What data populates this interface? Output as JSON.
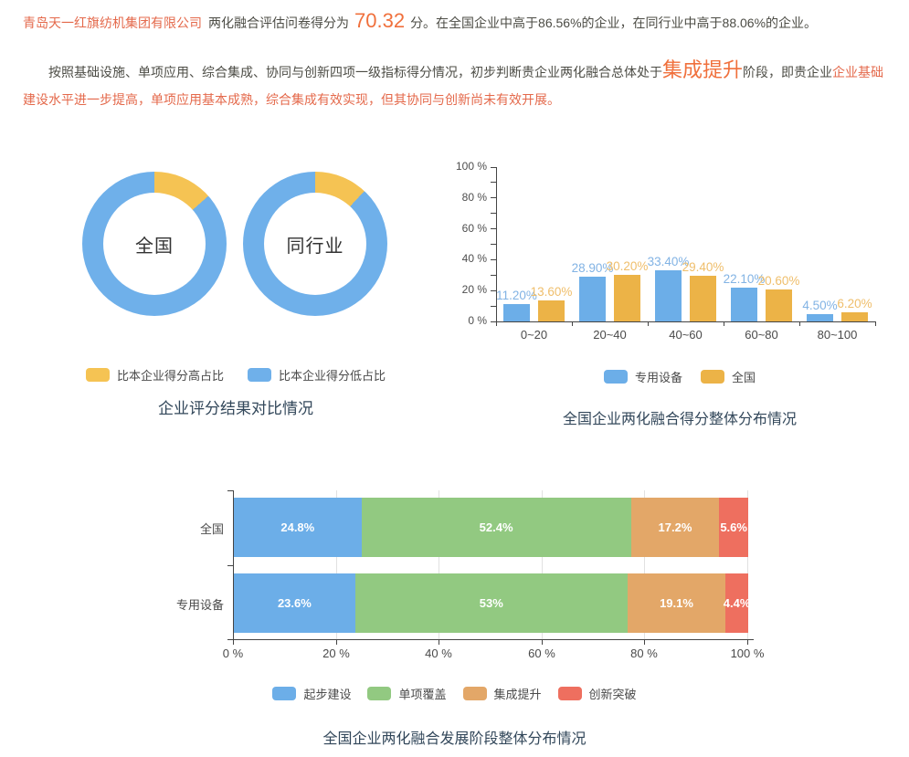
{
  "colors": {
    "blue": "#6CAEE8",
    "donut_blue": "#6FB0EA",
    "donut_yellow": "#F5C353",
    "bar_orange": "#ECB347",
    "stage_green": "#92C981",
    "stage_orange": "#E3A768",
    "stage_red": "#EE6F5F",
    "title_text": "#32475A",
    "body_text": "#4C4C45",
    "highlight_red": "#E4694B",
    "highlight_orange": "#F0703C"
  },
  "summary": {
    "company": "青岛天一红旗纺机集团有限公司",
    "score_prefix": "两化融合评估问卷得分为",
    "score": "70.32",
    "score_suffix": "分。在全国企业中高于86.56%的企业，在同行业中高于88.06%的企业。",
    "stage_prefix": "按照基础设施、单项应用、综合集成、协同与创新四项一级指标得分情况，初步判断贵企业两化融合总体处于",
    "stage": "集成提升",
    "stage_mid": "阶段，即贵企业",
    "stage_desc": "企业基础建设水平进一步提高，单项应用基本成熟，综合集成有效实现，但其协同与创新尚未有效开展。"
  },
  "chart_data": [
    {
      "id": "score-compare-donuts",
      "type": "pie",
      "title": "企业评分结果对比情况",
      "legend": [
        "比本企业得分高占比",
        "比本企业得分低占比"
      ],
      "legend_colors": [
        "#F5C353",
        "#6FB0EA"
      ],
      "legend_position": "bottom",
      "donuts": [
        {
          "label": "全国",
          "values": [
            13.44,
            86.56
          ]
        },
        {
          "label": "同行业",
          "values": [
            11.94,
            88.06
          ]
        }
      ]
    },
    {
      "id": "score-distribution",
      "type": "bar",
      "title": "全国企业两化融合得分整体分布情况",
      "categories": [
        "0~20",
        "20~40",
        "40~60",
        "60~80",
        "80~100"
      ],
      "series": [
        {
          "name": "专用设备",
          "color": "#6CAEE8",
          "label_color": "#82B3E4",
          "values": [
            11.2,
            28.9,
            33.4,
            22.1,
            4.5
          ],
          "labels": [
            "11.20%",
            "28.90%",
            "33.40%",
            "22.10%",
            "4.50%"
          ]
        },
        {
          "name": "全国",
          "color": "#ECB347",
          "label_color": "#EFBE6B",
          "values": [
            13.6,
            30.2,
            29.4,
            20.6,
            6.2
          ],
          "labels": [
            "13.60%",
            "30.20%",
            "29.40%",
            "20.60%",
            "6.20%"
          ]
        }
      ],
      "ylim": [
        0,
        100
      ],
      "yticks": [
        "0 %",
        "20 %",
        "40 %",
        "60 %",
        "80 %",
        "100 %"
      ],
      "grid": false,
      "legend_position": "bottom"
    },
    {
      "id": "stage-distribution",
      "type": "bar",
      "orientation": "horizontal",
      "stacked": true,
      "title": "全国企业两化融合发展阶段整体分布情况",
      "categories": [
        "全国",
        "专用设备"
      ],
      "series": [
        {
          "name": "起步建设",
          "color": "#6CAEE8",
          "values": [
            24.8,
            23.6
          ],
          "labels": [
            "24.8%",
            "23.6%"
          ]
        },
        {
          "name": "单项覆盖",
          "color": "#92C981",
          "values": [
            52.4,
            53
          ],
          "labels": [
            "52.4%",
            "53%"
          ]
        },
        {
          "name": "集成提升",
          "color": "#E3A768",
          "values": [
            17.2,
            19.1
          ],
          "labels": [
            "17.2%",
            "19.1%"
          ]
        },
        {
          "name": "创新突破",
          "color": "#EE6F5F",
          "values": [
            5.6,
            4.4
          ],
          "labels": [
            "5.6%",
            "4.4%"
          ]
        }
      ],
      "xlim": [
        0,
        100
      ],
      "xticks": [
        "0 %",
        "20 %",
        "40 %",
        "60 %",
        "80 %",
        "100 %"
      ],
      "grid": true,
      "legend_position": "bottom"
    }
  ]
}
